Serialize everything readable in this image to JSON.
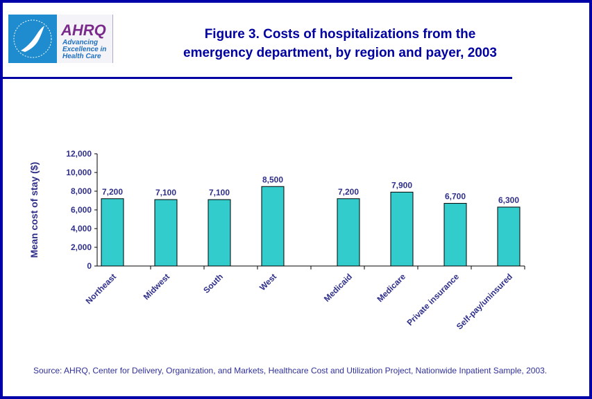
{
  "header": {
    "logo_hhs_alt": "Department of Health & Human Services USA",
    "logo_ahrq_word": "AHRQ",
    "logo_ahrq_tagline": "Advancing Excellence in Health Care",
    "title_line1": "Figure 3. Costs of hospitalizations from the",
    "title_line2": "emergency department, by region and payer, 2003"
  },
  "colors": {
    "frame": "#0000a8",
    "title": "#0000a0",
    "bar": "#33cccc",
    "text": "#2f2f8a"
  },
  "chart_data": {
    "type": "bar",
    "title": "Figure 3. Costs of hospitalizations from the emergency department, by region and payer, 2003",
    "ylabel": "Mean cost of stay ($)",
    "xlabel": "",
    "ylim": [
      0,
      12000
    ],
    "yticks": [
      "0",
      "2,000",
      "4,000",
      "6,000",
      "8,000",
      "10,000",
      "12,000"
    ],
    "categories": [
      "Northeast",
      "Midwest",
      "South",
      "West",
      "Medicaid",
      "Medicare",
      "Private insurance",
      "Self-pay/uninsured"
    ],
    "values": [
      7200,
      7100,
      7100,
      8500,
      7200,
      7900,
      6700,
      6300
    ],
    "labels": [
      "7,200",
      "7,100",
      "7,100",
      "8,500",
      "7,200",
      "7,900",
      "6,700",
      "6,300"
    ],
    "grid": false,
    "legend": "none"
  },
  "footer": {
    "source": "Source: AHRQ, Center for Delivery, Organization, and Markets, Healthcare Cost and Utilization Project, Nationwide Inpatient Sample, 2003."
  }
}
